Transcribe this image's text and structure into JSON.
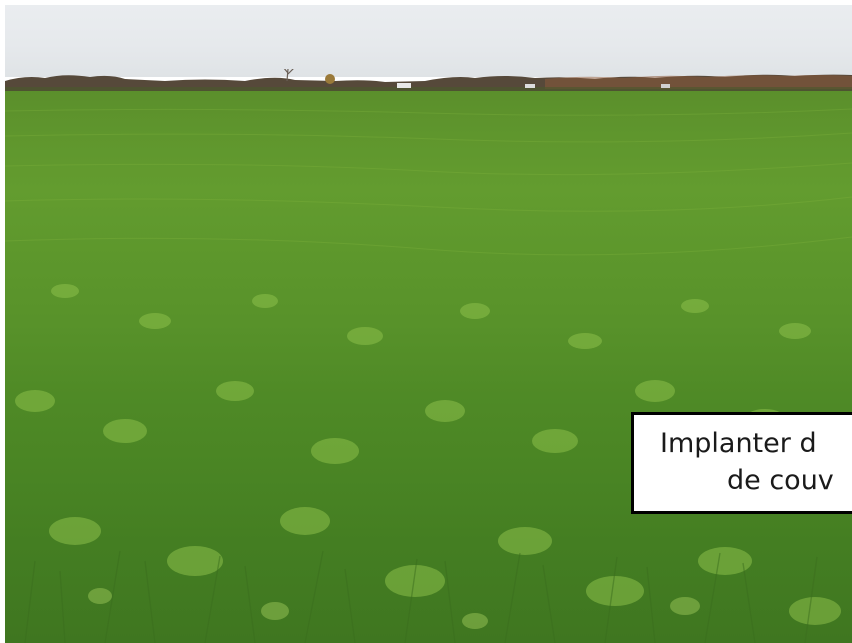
{
  "caption": {
    "line1": "Implanter d",
    "line2": "de couv"
  },
  "colors": {
    "sky": "#e6e9ec",
    "field_top": "#5b8f2c",
    "field_bottom": "#3f7620",
    "treeline": "#5a4632",
    "caption_border": "#000000",
    "caption_bg": "#ffffff"
  }
}
